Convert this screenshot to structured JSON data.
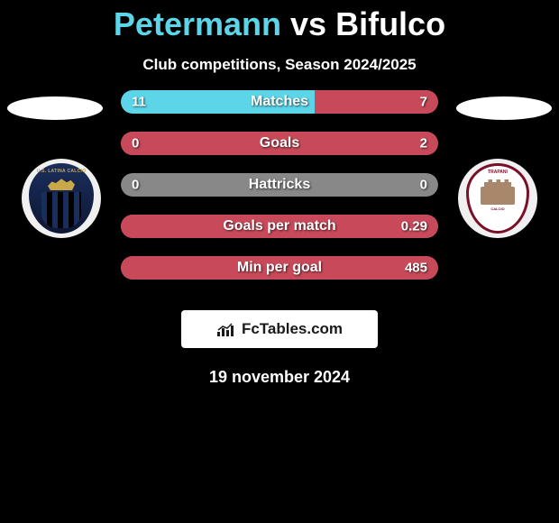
{
  "title": {
    "left": "Petermann",
    "vs": "vs",
    "right": "Bifulco"
  },
  "subtitle": "Club competitions, Season 2024/2025",
  "colors": {
    "left_accent": "#5dd5e8",
    "right_accent": "#c84a5a",
    "bar_neutral": "#888888",
    "background": "#000000"
  },
  "side_discs": {
    "left_bg": "#ffffff",
    "right_bg": "#ffffff"
  },
  "stats": [
    {
      "label": "Matches",
      "left_value": "11",
      "right_value": "7",
      "left_pct": 61,
      "right_pct": 39
    },
    {
      "label": "Goals",
      "left_value": "0",
      "right_value": "2",
      "left_pct": 0,
      "right_pct": 100
    },
    {
      "label": "Hattricks",
      "left_value": "0",
      "right_value": "0",
      "left_pct": 0,
      "right_pct": 0
    },
    {
      "label": "Goals per match",
      "left_value": "",
      "right_value": "0.29",
      "left_pct": 0,
      "right_pct": 100
    },
    {
      "label": "Min per goal",
      "left_value": "",
      "right_value": "485",
      "left_pct": 0,
      "right_pct": 100
    }
  ],
  "crests": {
    "left": {
      "bg": "#f0f0f0",
      "shield_color": "#1a2e5c",
      "top_text": "U.S. LATINA CALCIO",
      "accent": "#c9a84a"
    },
    "right": {
      "bg": "#f0f0f0",
      "border_color": "#7a1028",
      "banner_text": "TRAPANI",
      "sub_text": "CALCIO",
      "tower_color": "#a8876a"
    }
  },
  "brand": {
    "text": "FcTables.com"
  },
  "date": "19 november 2024"
}
